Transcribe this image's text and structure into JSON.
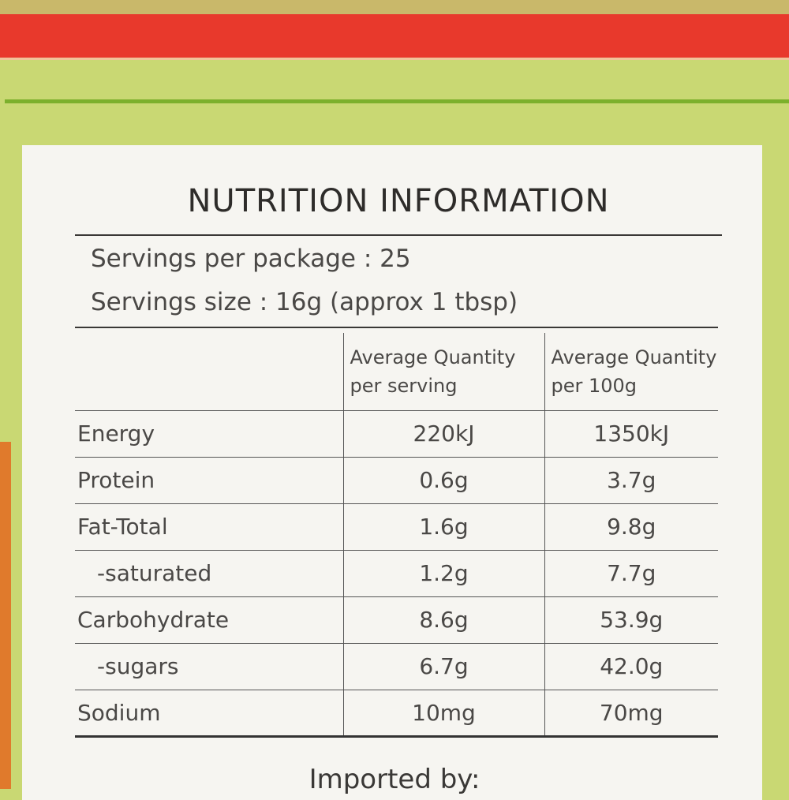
{
  "title": "NUTRITION INFORMATION",
  "servings_per_package": "Servings per package : 25",
  "serving_size": "Servings size : 16g (approx 1 tbsp)",
  "headers": {
    "per_serving_1": "Average Quantity",
    "per_serving_2": "per serving",
    "per_100g_1": "Average Quantity",
    "per_100g_2": "per 100g"
  },
  "rows": [
    {
      "name": "Energy",
      "serving": "220kJ",
      "per100": "1350kJ"
    },
    {
      "name": "Protein",
      "serving": "0.6g",
      "per100": "3.7g"
    },
    {
      "name": "Fat-Total",
      "serving": "1.6g",
      "per100": "9.8g"
    },
    {
      "name": "-saturated",
      "serving": "1.2g",
      "per100": "7.7g"
    },
    {
      "name": "Carbohydrate",
      "serving": "8.6g",
      "per100": "53.9g"
    },
    {
      "name": "-sugars",
      "serving": "6.7g",
      "per100": "42.0g"
    },
    {
      "name": "Sodium",
      "serving": "10mg",
      "per100": "70mg"
    }
  ],
  "imported_by": "Imported by:"
}
